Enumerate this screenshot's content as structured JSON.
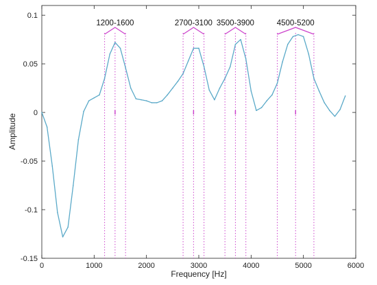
{
  "chart_data": {
    "type": "line",
    "title": "",
    "xlabel": "Frequency [Hz]",
    "ylabel": "Amplitude",
    "xlim": [
      0,
      6000
    ],
    "ylim": [
      -0.15,
      0.11
    ],
    "x_ticks": [
      0,
      1000,
      2000,
      3000,
      4000,
      5000,
      6000
    ],
    "x_tick_labels": [
      "0",
      "1000",
      "2000",
      "3000",
      "4000",
      "5000",
      "6000"
    ],
    "y_ticks": [
      -0.15,
      -0.1,
      -0.05,
      0,
      0.05,
      0.1
    ],
    "y_tick_labels": [
      "-0.15",
      "-0.1",
      "-0.05",
      "0",
      "0.05",
      "0.1"
    ],
    "grid": false,
    "colors": {
      "line": "#5aa9c8",
      "band": "#cc44cc"
    },
    "series": [
      {
        "x": [
          0,
          100,
          200,
          300,
          400,
          500,
          600,
          700,
          800,
          900,
          1000,
          1100,
          1200,
          1300,
          1400,
          1500,
          1600,
          1700,
          1800,
          1900,
          2000,
          2100,
          2200,
          2300,
          2400,
          2500,
          2600,
          2700,
          2800,
          2900,
          3000,
          3100,
          3200,
          3300,
          3400,
          3500,
          3600,
          3700,
          3800,
          3900,
          4000,
          4100,
          4200,
          4300,
          4400,
          4500,
          4600,
          4700,
          4800,
          4900,
          5000,
          5100,
          5200,
          5300,
          5400,
          5500,
          5600,
          5700,
          5800
        ],
        "values": [
          0,
          -0.015,
          -0.055,
          -0.103,
          -0.128,
          -0.118,
          -0.075,
          -0.028,
          0.001,
          0.012,
          0.015,
          0.018,
          0.035,
          0.06,
          0.072,
          0.066,
          0.046,
          0.025,
          0.014,
          0.013,
          0.012,
          0.01,
          0.01,
          0.012,
          0.018,
          0.025,
          0.032,
          0.04,
          0.053,
          0.066,
          0.066,
          0.047,
          0.023,
          0.013,
          0.025,
          0.035,
          0.047,
          0.07,
          0.075,
          0.055,
          0.022,
          0.002,
          0.005,
          0.012,
          0.018,
          0.03,
          0.052,
          0.07,
          0.078,
          0.08,
          0.078,
          0.06,
          0.035,
          0.022,
          0.01,
          0.002,
          -0.004,
          0.003,
          0.017
        ]
      }
    ],
    "bands": [
      {
        "label": "1200-1600",
        "start": 1200,
        "end": 1600
      },
      {
        "label": "2700-3100",
        "start": 2700,
        "end": 3100
      },
      {
        "label": "3500-3900",
        "start": 3500,
        "end": 3900
      },
      {
        "label": "4500-5200",
        "start": 4500,
        "end": 5200
      }
    ]
  }
}
